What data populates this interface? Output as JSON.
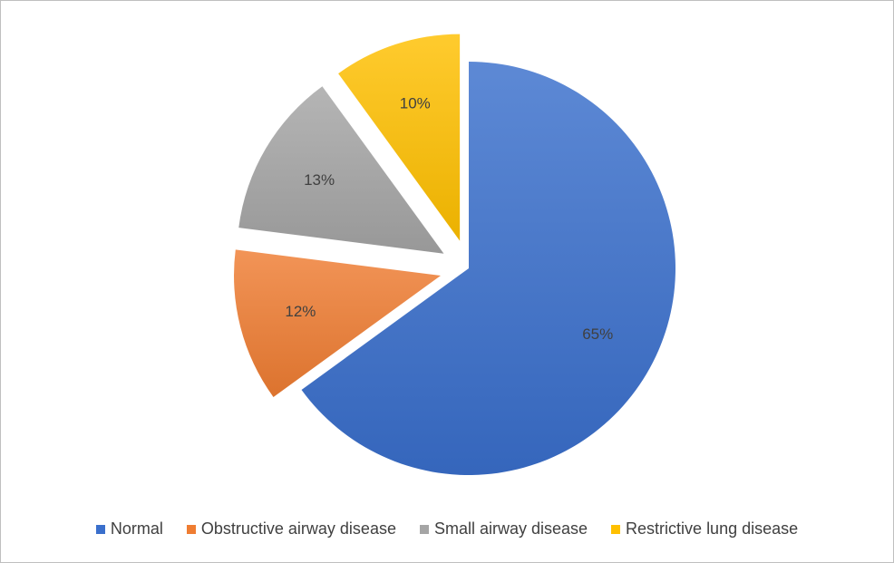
{
  "chart_data": {
    "type": "pie",
    "title": "",
    "exploded": true,
    "legend_position": "bottom",
    "slices": [
      {
        "name": "Normal",
        "value": 65,
        "label": "65%",
        "color": "#3a6fcc"
      },
      {
        "name": "Obstructive airway disease",
        "value": 12,
        "label": "12%",
        "color": "#ef7d32"
      },
      {
        "name": "Small airway disease",
        "value": 13,
        "label": "13%",
        "color": "#a5a5a5"
      },
      {
        "name": "Restrictive lung disease",
        "value": 10,
        "label": "10%",
        "color": "#ffc000"
      }
    ]
  }
}
